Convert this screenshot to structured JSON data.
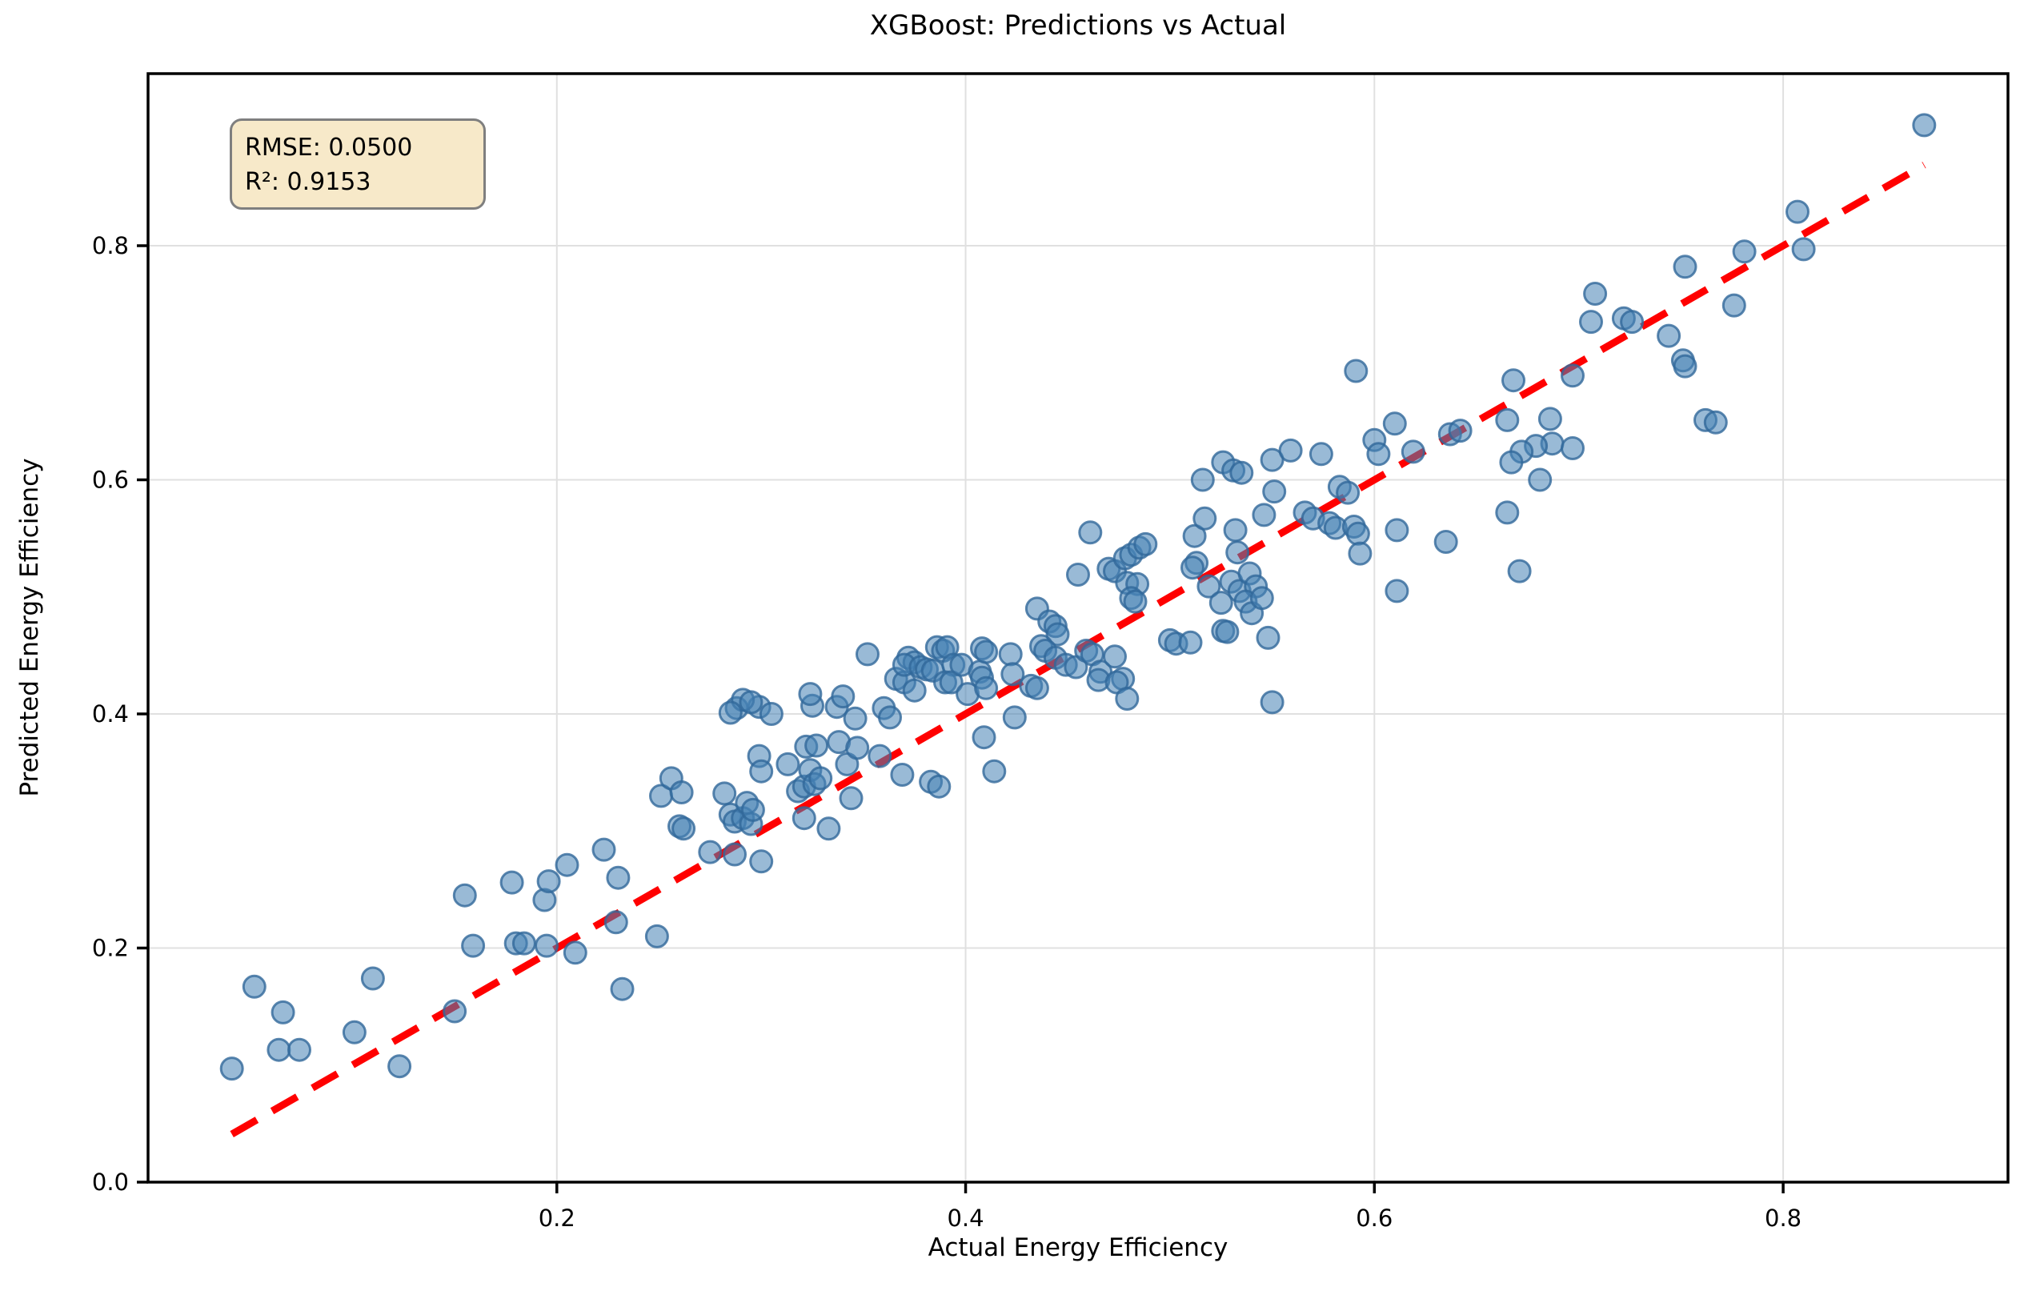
{
  "chart_data": {
    "type": "scatter",
    "title": "XGBoost: Predictions vs Actual",
    "xlabel": "Actual Energy Efficiency",
    "ylabel": "Predicted Energy Efficiency",
    "xlim": [
      0.0,
      0.91
    ],
    "ylim": [
      0.0,
      0.947
    ],
    "grid": true,
    "grid_color": "#e0e0e0",
    "frame_color": "#000000",
    "xticks": {
      "values": [
        0.2,
        0.4,
        0.6,
        0.8
      ],
      "labels": [
        "0.2",
        "0.4",
        "0.6",
        "0.8"
      ]
    },
    "yticks": {
      "values": [
        0.0,
        0.2,
        0.4,
        0.6,
        0.8
      ],
      "labels": [
        "0.0",
        "0.2",
        "0.4",
        "0.6",
        "0.8"
      ]
    },
    "annotation": {
      "line1": "RMSE: 0.0500",
      "line2": "R²: 0.9153",
      "bg": "#f7e9c9",
      "border": "#7f7f7f"
    },
    "identity_line": {
      "color": "#ff0000",
      "style": "dashed",
      "x": [
        0.041,
        0.869
      ],
      "y": [
        0.041,
        0.869
      ]
    },
    "marker": {
      "fill": "#4682b4",
      "fill_opacity": 0.55,
      "edge": "#31689a",
      "edge_opacity": 0.8,
      "radius": 13.5
    },
    "series": [
      {
        "name": "predictions",
        "points": [
          [
            0.041,
            0.097
          ],
          [
            0.052,
            0.167
          ],
          [
            0.064,
            0.113
          ],
          [
            0.066,
            0.145
          ],
          [
            0.074,
            0.113
          ],
          [
            0.101,
            0.128
          ],
          [
            0.11,
            0.174
          ],
          [
            0.123,
            0.099
          ],
          [
            0.15,
            0.146
          ],
          [
            0.155,
            0.245
          ],
          [
            0.159,
            0.202
          ],
          [
            0.178,
            0.256
          ],
          [
            0.18,
            0.204
          ],
          [
            0.184,
            0.204
          ],
          [
            0.194,
            0.241
          ],
          [
            0.195,
            0.202
          ],
          [
            0.196,
            0.257
          ],
          [
            0.205,
            0.271
          ],
          [
            0.209,
            0.196
          ],
          [
            0.223,
            0.284
          ],
          [
            0.229,
            0.222
          ],
          [
            0.23,
            0.26
          ],
          [
            0.232,
            0.165
          ],
          [
            0.249,
            0.21
          ],
          [
            0.251,
            0.33
          ],
          [
            0.256,
            0.345
          ],
          [
            0.26,
            0.304
          ],
          [
            0.261,
            0.333
          ],
          [
            0.262,
            0.302
          ],
          [
            0.275,
            0.282
          ],
          [
            0.282,
            0.332
          ],
          [
            0.285,
            0.314
          ],
          [
            0.287,
            0.308
          ],
          [
            0.287,
            0.28
          ],
          [
            0.288,
            0.405
          ],
          [
            0.291,
            0.311
          ],
          [
            0.293,
            0.324
          ],
          [
            0.295,
            0.306
          ],
          [
            0.296,
            0.318
          ],
          [
            0.299,
            0.406
          ],
          [
            0.299,
            0.364
          ],
          [
            0.3,
            0.351
          ],
          [
            0.3,
            0.274
          ],
          [
            0.305,
            0.4
          ],
          [
            0.313,
            0.357
          ],
          [
            0.318,
            0.334
          ],
          [
            0.321,
            0.338
          ],
          [
            0.321,
            0.311
          ],
          [
            0.322,
            0.372
          ],
          [
            0.324,
            0.352
          ],
          [
            0.325,
            0.407
          ],
          [
            0.326,
            0.34
          ],
          [
            0.327,
            0.373
          ],
          [
            0.329,
            0.345
          ],
          [
            0.333,
            0.302
          ],
          [
            0.337,
            0.406
          ],
          [
            0.338,
            0.376
          ],
          [
            0.342,
            0.357
          ],
          [
            0.344,
            0.328
          ],
          [
            0.346,
            0.396
          ],
          [
            0.347,
            0.371
          ],
          [
            0.352,
            0.451
          ],
          [
            0.324,
            0.417
          ],
          [
            0.34,
            0.415
          ],
          [
            0.291,
            0.412
          ],
          [
            0.295,
            0.41
          ],
          [
            0.285,
            0.401
          ],
          [
            0.36,
            0.405
          ],
          [
            0.363,
            0.397
          ],
          [
            0.358,
            0.364
          ],
          [
            0.366,
            0.43
          ],
          [
            0.37,
            0.427
          ],
          [
            0.372,
            0.448
          ],
          [
            0.375,
            0.444
          ],
          [
            0.37,
            0.442
          ],
          [
            0.375,
            0.42
          ],
          [
            0.378,
            0.44
          ],
          [
            0.381,
            0.438
          ],
          [
            0.384,
            0.437
          ],
          [
            0.386,
            0.457
          ],
          [
            0.389,
            0.454
          ],
          [
            0.391,
            0.457
          ],
          [
            0.394,
            0.442
          ],
          [
            0.39,
            0.427
          ],
          [
            0.393,
            0.427
          ],
          [
            0.398,
            0.442
          ],
          [
            0.401,
            0.417
          ],
          [
            0.369,
            0.348
          ],
          [
            0.383,
            0.342
          ],
          [
            0.387,
            0.338
          ],
          [
            0.409,
            0.38
          ],
          [
            0.414,
            0.351
          ],
          [
            0.407,
            0.436
          ],
          [
            0.408,
            0.431
          ],
          [
            0.41,
            0.422
          ],
          [
            0.408,
            0.456
          ],
          [
            0.41,
            0.453
          ],
          [
            0.422,
            0.451
          ],
          [
            0.423,
            0.434
          ],
          [
            0.432,
            0.424
          ],
          [
            0.435,
            0.422
          ],
          [
            0.424,
            0.397
          ],
          [
            0.435,
            0.49
          ],
          [
            0.441,
            0.479
          ],
          [
            0.444,
            0.475
          ],
          [
            0.445,
            0.468
          ],
          [
            0.437,
            0.458
          ],
          [
            0.439,
            0.454
          ],
          [
            0.444,
            0.448
          ],
          [
            0.449,
            0.442
          ],
          [
            0.454,
            0.44
          ],
          [
            0.459,
            0.454
          ],
          [
            0.462,
            0.451
          ],
          [
            0.466,
            0.436
          ],
          [
            0.465,
            0.429
          ],
          [
            0.473,
            0.449
          ],
          [
            0.477,
            0.43
          ],
          [
            0.474,
            0.427
          ],
          [
            0.479,
            0.413
          ],
          [
            0.5,
            0.463
          ],
          [
            0.503,
            0.46
          ],
          [
            0.51,
            0.461
          ],
          [
            0.526,
            0.471
          ],
          [
            0.528,
            0.47
          ],
          [
            0.548,
            0.465
          ],
          [
            0.55,
            0.41
          ],
          [
            0.461,
            0.555
          ],
          [
            0.455,
            0.519
          ],
          [
            0.47,
            0.524
          ],
          [
            0.473,
            0.522
          ],
          [
            0.478,
            0.533
          ],
          [
            0.481,
            0.536
          ],
          [
            0.485,
            0.542
          ],
          [
            0.488,
            0.545
          ],
          [
            0.479,
            0.512
          ],
          [
            0.484,
            0.511
          ],
          [
            0.481,
            0.499
          ],
          [
            0.483,
            0.496
          ],
          [
            0.512,
            0.552
          ],
          [
            0.513,
            0.529
          ],
          [
            0.511,
            0.525
          ],
          [
            0.519,
            0.509
          ],
          [
            0.532,
            0.557
          ],
          [
            0.533,
            0.538
          ],
          [
            0.53,
            0.513
          ],
          [
            0.534,
            0.505
          ],
          [
            0.539,
            0.52
          ],
          [
            0.542,
            0.509
          ],
          [
            0.537,
            0.496
          ],
          [
            0.54,
            0.486
          ],
          [
            0.525,
            0.495
          ],
          [
            0.545,
            0.499
          ],
          [
            0.516,
            0.6
          ],
          [
            0.526,
            0.615
          ],
          [
            0.531,
            0.608
          ],
          [
            0.535,
            0.606
          ],
          [
            0.55,
            0.617
          ],
          [
            0.559,
            0.625
          ],
          [
            0.574,
            0.622
          ],
          [
            0.551,
            0.59
          ],
          [
            0.517,
            0.567
          ],
          [
            0.546,
            0.57
          ],
          [
            0.566,
            0.572
          ],
          [
            0.57,
            0.567
          ],
          [
            0.578,
            0.563
          ],
          [
            0.581,
            0.559
          ],
          [
            0.583,
            0.594
          ],
          [
            0.587,
            0.589
          ],
          [
            0.59,
            0.56
          ],
          [
            0.592,
            0.554
          ],
          [
            0.593,
            0.537
          ],
          [
            0.611,
            0.557
          ],
          [
            0.591,
            0.693
          ],
          [
            0.6,
            0.634
          ],
          [
            0.602,
            0.622
          ],
          [
            0.61,
            0.648
          ],
          [
            0.619,
            0.624
          ],
          [
            0.637,
            0.639
          ],
          [
            0.642,
            0.642
          ],
          [
            0.665,
            0.651
          ],
          [
            0.686,
            0.652
          ],
          [
            0.668,
            0.685
          ],
          [
            0.697,
            0.689
          ],
          [
            0.687,
            0.631
          ],
          [
            0.679,
            0.629
          ],
          [
            0.672,
            0.624
          ],
          [
            0.667,
            0.615
          ],
          [
            0.697,
            0.627
          ],
          [
            0.681,
            0.6
          ],
          [
            0.665,
            0.572
          ],
          [
            0.671,
            0.522
          ],
          [
            0.635,
            0.547
          ],
          [
            0.611,
            0.505
          ],
          [
            0.706,
            0.735
          ],
          [
            0.708,
            0.759
          ],
          [
            0.722,
            0.738
          ],
          [
            0.726,
            0.735
          ],
          [
            0.744,
            0.723
          ],
          [
            0.751,
            0.702
          ],
          [
            0.752,
            0.697
          ],
          [
            0.869,
            0.903
          ],
          [
            0.807,
            0.829
          ],
          [
            0.81,
            0.797
          ],
          [
            0.781,
            0.795
          ],
          [
            0.752,
            0.782
          ],
          [
            0.776,
            0.749
          ],
          [
            0.762,
            0.651
          ],
          [
            0.767,
            0.649
          ]
        ]
      }
    ]
  }
}
